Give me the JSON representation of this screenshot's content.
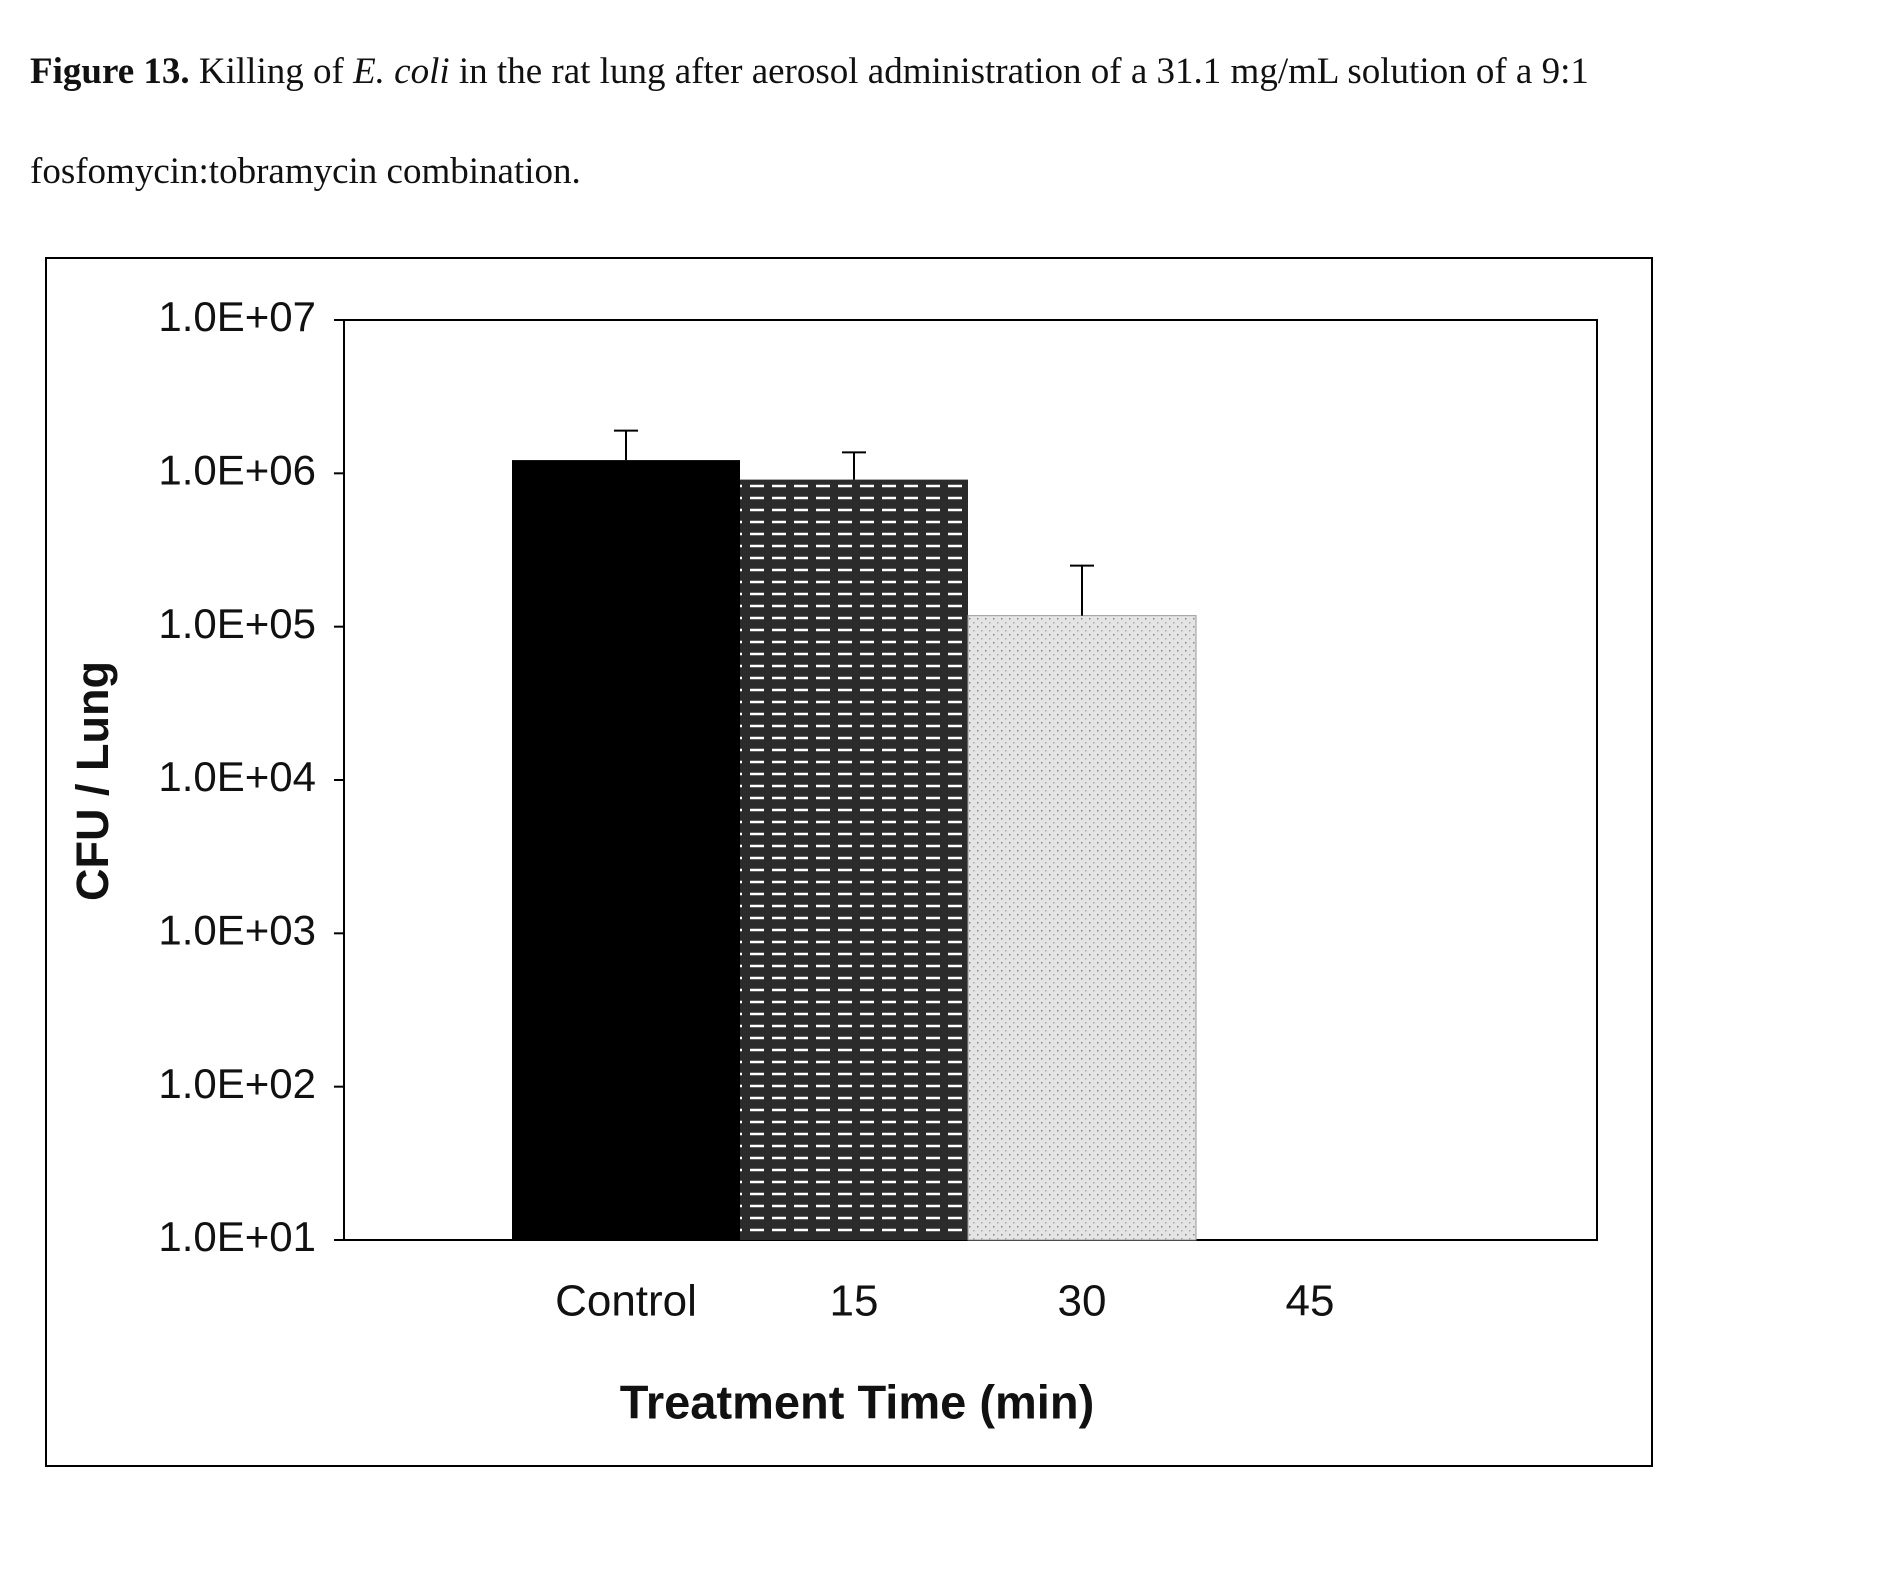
{
  "caption": {
    "label": "Figure 13.",
    "text_a": " Killing of ",
    "organism": "E. coli",
    "text_b": " in the rat lung after aerosol administration of a 31.1 mg/mL solution of a 9:1 fosfomycin:tobramycin combination."
  },
  "chart_data": {
    "type": "bar",
    "x_label": "Treatment Time (min)",
    "y_label": "CFU / Lung",
    "categories": [
      "Control",
      "15",
      "30",
      "45"
    ],
    "values": [
      1220000,
      910000,
      118000,
      null
    ],
    "errors": [
      680000,
      460000,
      132000,
      null
    ],
    "colors": [
      "#000000",
      "#2b2b2b",
      "#e4e4e4",
      "#ffffff"
    ],
    "log_scale": true,
    "ylim": [
      10,
      10000000
    ],
    "yticks": [
      {
        "value": 10,
        "label": "1.0E+01"
      },
      {
        "value": 100,
        "label": "1.0E+02"
      },
      {
        "value": 1000,
        "label": "1.0E+03"
      },
      {
        "value": 10000,
        "label": "1.0E+04"
      },
      {
        "value": 100000,
        "label": "1.0E+05"
      },
      {
        "value": 1000000,
        "label": "1.0E+06"
      },
      {
        "value": 10000000,
        "label": "1.0E+07"
      }
    ],
    "grid": false
  }
}
